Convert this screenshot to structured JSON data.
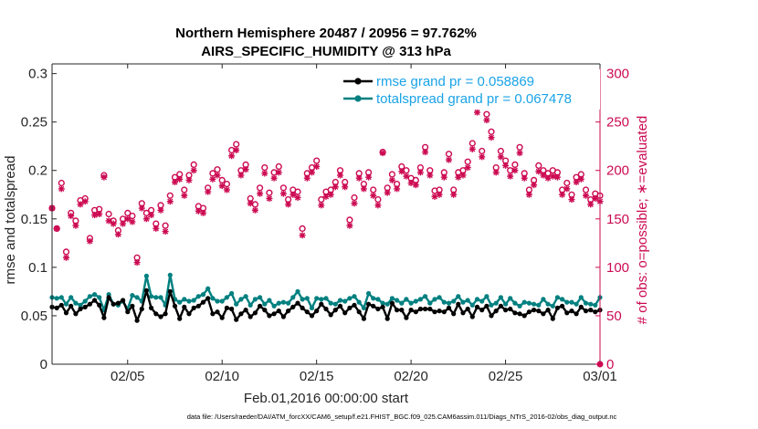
{
  "chart_data": {
    "type": "line",
    "title": "Northern Hemisphere 20487 / 20956 = 97.762%",
    "subtitle": "AIRS_SPECIFIC_HUMIDITY @ 313 hPa",
    "xlabel": "Feb.01,2016 00:00:00 start",
    "ylabel": "rmse and totalspread",
    "y2label": "# of obs: o=possible; ∗=evaluated",
    "footnote": "data file: /Users/raeder/DAI/ATM_forcXX/CAM6_setup/f.e21.FHIST_BGC.f09_025.CAM6assim.011/Diags_NTrS_2016-02/obs_diag_output.nc",
    "xlim": [
      1,
      30
    ],
    "ylim": [
      0,
      0.31
    ],
    "y2lim": [
      0,
      310
    ],
    "x_ticks": [
      5,
      10,
      15,
      20,
      25,
      30
    ],
    "x_tick_labels": [
      "02/05",
      "02/10",
      "02/15",
      "02/20",
      "02/25",
      "03/01"
    ],
    "y_ticks": [
      0,
      0.05,
      0.1,
      0.15,
      0.2,
      0.25,
      0.3
    ],
    "y_tick_labels": [
      "0",
      "0.05",
      "0.1",
      "0.15",
      "0.2",
      "0.25",
      "0.3"
    ],
    "y2_ticks": [
      0,
      50,
      100,
      150,
      200,
      250,
      300
    ],
    "y2_tick_labels": [
      "0",
      "50",
      "100",
      "150",
      "200",
      "250",
      "300"
    ],
    "grid": false,
    "legend_position": "top-right",
    "x": [
      1.0,
      1.25,
      1.5,
      1.75,
      2.0,
      2.25,
      2.5,
      2.75,
      3.0,
      3.25,
      3.5,
      3.75,
      4.0,
      4.25,
      4.5,
      4.75,
      5.0,
      5.25,
      5.5,
      5.75,
      6.0,
      6.25,
      6.5,
      6.75,
      7.0,
      7.25,
      7.5,
      7.75,
      8.0,
      8.25,
      8.5,
      8.75,
      9.0,
      9.25,
      9.5,
      9.75,
      10.0,
      10.25,
      10.5,
      10.75,
      11.0,
      11.25,
      11.5,
      11.75,
      12.0,
      12.25,
      12.5,
      12.75,
      13.0,
      13.25,
      13.5,
      13.75,
      14.0,
      14.25,
      14.5,
      14.75,
      15.0,
      15.25,
      15.5,
      15.75,
      16.0,
      16.25,
      16.5,
      16.75,
      17.0,
      17.25,
      17.5,
      17.75,
      18.0,
      18.25,
      18.5,
      18.75,
      19.0,
      19.25,
      19.5,
      19.75,
      20.0,
      20.25,
      20.5,
      20.75,
      21.0,
      21.25,
      21.5,
      21.75,
      22.0,
      22.25,
      22.5,
      22.75,
      23.0,
      23.25,
      23.5,
      23.75,
      24.0,
      24.25,
      24.5,
      24.75,
      25.0,
      25.25,
      25.5,
      25.75,
      26.0,
      26.25,
      26.5,
      26.75,
      27.0,
      27.25,
      27.5,
      27.75,
      28.0,
      28.25,
      28.5,
      28.75,
      29.0,
      29.25,
      29.5,
      29.75,
      30.0
    ],
    "series": [
      {
        "name": "rmse grand pr = 0.058869",
        "color": "#000000",
        "axis": "left",
        "values": [
          0.059,
          0.058,
          0.061,
          0.053,
          0.06,
          0.052,
          0.057,
          0.059,
          0.062,
          0.066,
          0.061,
          0.048,
          0.069,
          0.062,
          0.063,
          0.066,
          0.054,
          0.06,
          0.045,
          0.057,
          0.076,
          0.058,
          0.052,
          0.049,
          0.052,
          0.075,
          0.06,
          0.047,
          0.059,
          0.052,
          0.058,
          0.06,
          0.064,
          0.068,
          0.052,
          0.054,
          0.048,
          0.058,
          0.057,
          0.046,
          0.052,
          0.056,
          0.049,
          0.053,
          0.06,
          0.056,
          0.05,
          0.052,
          0.055,
          0.049,
          0.055,
          0.059,
          0.063,
          0.058,
          0.054,
          0.05,
          0.055,
          0.062,
          0.057,
          0.051,
          0.056,
          0.06,
          0.053,
          0.058,
          0.061,
          0.054,
          0.047,
          0.062,
          0.06,
          0.057,
          0.059,
          0.047,
          0.063,
          0.056,
          0.056,
          0.048,
          0.056,
          0.054,
          0.057,
          0.057,
          0.057,
          0.054,
          0.055,
          0.054,
          0.058,
          0.052,
          0.062,
          0.053,
          0.057,
          0.049,
          0.059,
          0.056,
          0.06,
          0.05,
          0.055,
          0.06,
          0.056,
          0.057,
          0.053,
          0.052,
          0.05,
          0.054,
          0.056,
          0.055,
          0.052,
          0.056,
          0.047,
          0.058,
          0.06,
          0.053,
          0.055,
          0.052,
          0.059,
          0.055,
          0.056,
          0.054,
          0.056
        ]
      },
      {
        "name": "totalspread grand pr = 0.067478",
        "color": "#008080",
        "axis": "left",
        "values": [
          0.069,
          0.068,
          0.069,
          0.062,
          0.069,
          0.063,
          0.061,
          0.065,
          0.07,
          0.072,
          0.069,
          0.056,
          0.072,
          0.062,
          0.061,
          0.065,
          0.057,
          0.071,
          0.069,
          0.065,
          0.091,
          0.07,
          0.069,
          0.069,
          0.061,
          0.092,
          0.067,
          0.064,
          0.067,
          0.065,
          0.066,
          0.07,
          0.072,
          0.078,
          0.068,
          0.065,
          0.065,
          0.069,
          0.073,
          0.062,
          0.067,
          0.07,
          0.061,
          0.067,
          0.069,
          0.062,
          0.066,
          0.06,
          0.063,
          0.064,
          0.063,
          0.069,
          0.075,
          0.067,
          0.068,
          0.058,
          0.068,
          0.067,
          0.068,
          0.063,
          0.062,
          0.066,
          0.065,
          0.068,
          0.07,
          0.064,
          0.058,
          0.073,
          0.068,
          0.067,
          0.063,
          0.062,
          0.068,
          0.066,
          0.063,
          0.067,
          0.063,
          0.065,
          0.067,
          0.07,
          0.063,
          0.067,
          0.069,
          0.064,
          0.063,
          0.065,
          0.07,
          0.064,
          0.066,
          0.061,
          0.067,
          0.065,
          0.07,
          0.061,
          0.063,
          0.069,
          0.062,
          0.068,
          0.063,
          0.06,
          0.064,
          0.063,
          0.062,
          0.061,
          0.067,
          0.062,
          0.06,
          0.069,
          0.067,
          0.064,
          0.064,
          0.062,
          0.069,
          0.063,
          0.062,
          0.061,
          0.069
        ]
      },
      {
        "name": "possible",
        "color": "#cc0a52",
        "axis": "right",
        "marker": "o",
        "values": [
          161,
          140,
          187,
          116,
          156,
          148,
          169,
          171,
          130,
          159,
          160,
          195,
          155,
          148,
          138,
          150,
          156,
          153,
          110,
          166,
          156,
          159,
          145,
          164,
          143,
          174,
          193,
          196,
          180,
          195,
          206,
          163,
          161,
          182,
          197,
          201,
          190,
          186,
          221,
          227,
          200,
          206,
          171,
          165,
          182,
          203,
          177,
          198,
          204,
          182,
          170,
          180,
          178,
          140,
          197,
          203,
          210,
          170,
          178,
          180,
          188,
          200,
          188,
          149,
          172,
          197,
          186,
          198,
          180,
          170,
          219,
          182,
          196,
          186,
          204,
          200,
          192,
          190,
          203,
          224,
          200,
          179,
          180,
          198,
          217,
          180,
          198,
          200,
          209,
          228,
          266,
          220,
          258,
          240,
          203,
          220,
          210,
          200,
          206,
          224,
          197,
          180,
          190,
          205,
          200,
          197,
          200,
          198,
          180,
          187,
          175,
          193,
          196,
          180,
          170,
          176,
          174
        ]
      },
      {
        "name": "evaluated",
        "color": "#cc0a52",
        "axis": "right",
        "marker": "*",
        "values": [
          161,
          140,
          181,
          110,
          153,
          143,
          165,
          168,
          127,
          154,
          155,
          193,
          148,
          145,
          134,
          145,
          150,
          147,
          105,
          161,
          150,
          154,
          140,
          159,
          137,
          168,
          188,
          191,
          174,
          190,
          200,
          158,
          156,
          178,
          191,
          195,
          184,
          180,
          215,
          221,
          195,
          201,
          166,
          159,
          176,
          197,
          171,
          192,
          198,
          176,
          165,
          175,
          172,
          133,
          192,
          198,
          204,
          164,
          173,
          175,
          183,
          195,
          183,
          143,
          166,
          192,
          181,
          193,
          174,
          164,
          218,
          177,
          190,
          181,
          199,
          194,
          187,
          185,
          198,
          219,
          195,
          173,
          175,
          193,
          211,
          175,
          193,
          195,
          203,
          222,
          260,
          214,
          252,
          234,
          198,
          214,
          205,
          194,
          200,
          218,
          192,
          175,
          185,
          199,
          195,
          192,
          194,
          193,
          175,
          181,
          170,
          188,
          191,
          174,
          165,
          171,
          168
        ]
      }
    ]
  }
}
